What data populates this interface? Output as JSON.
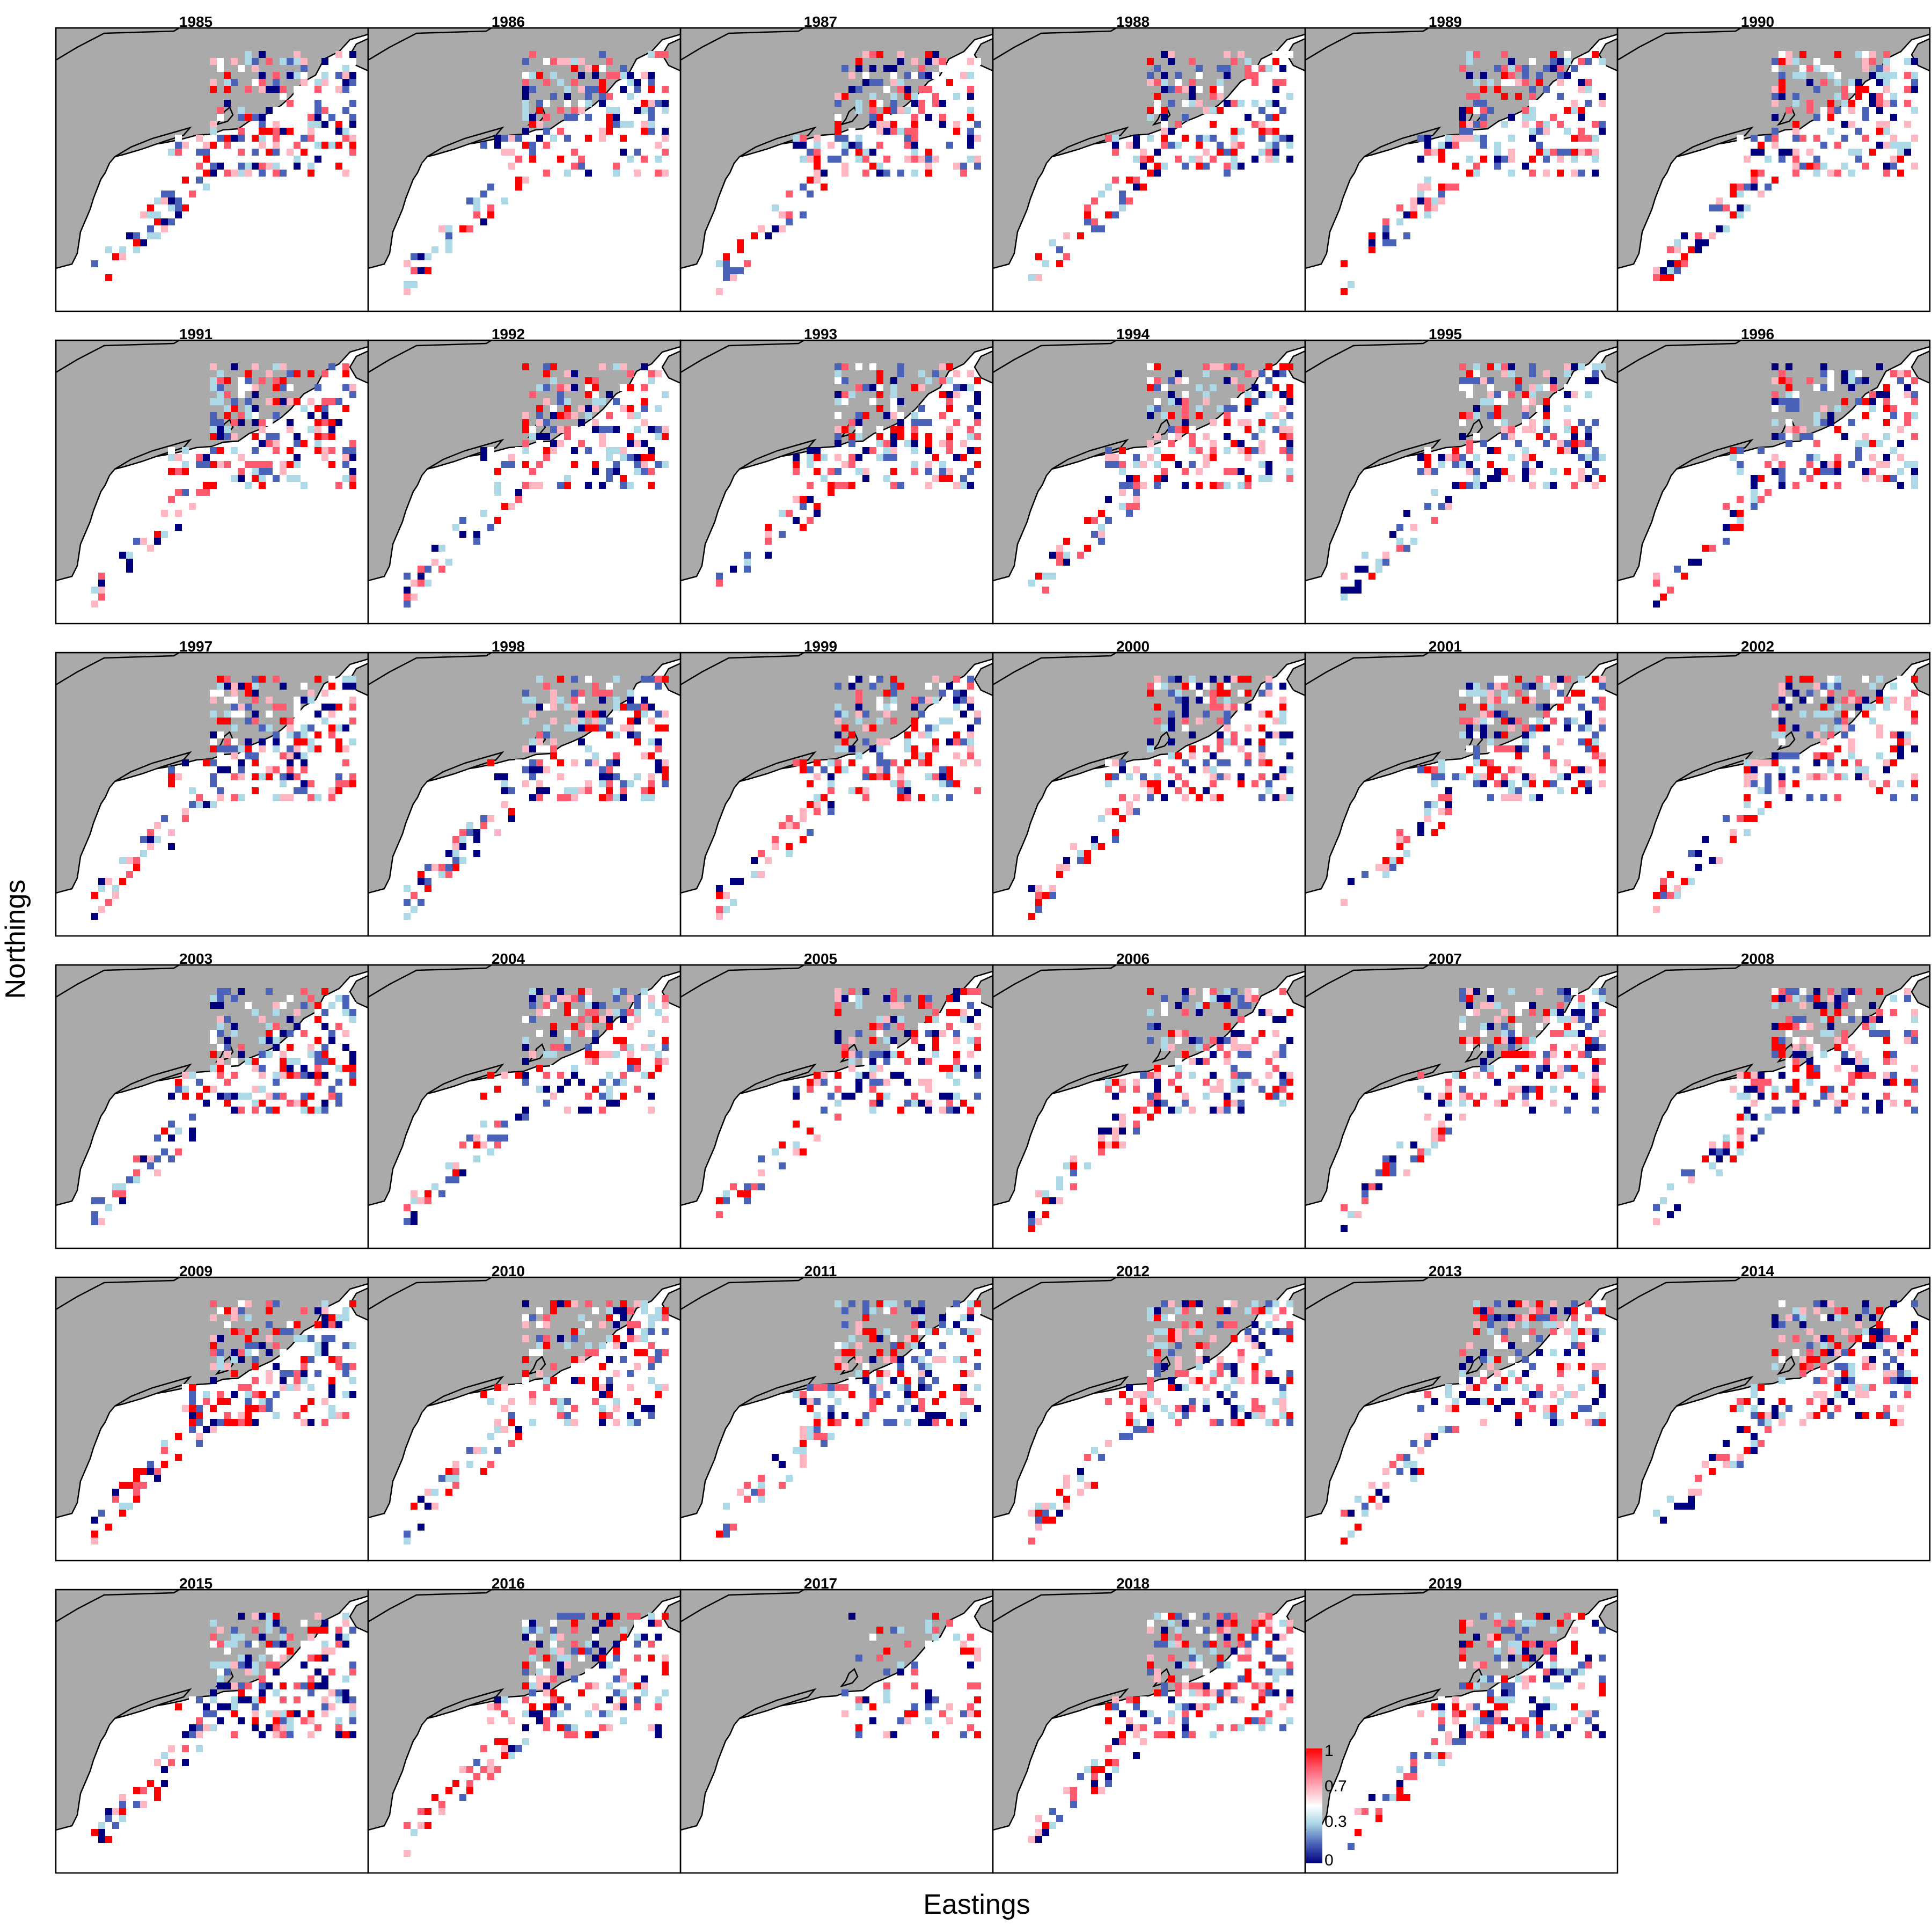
{
  "chart_data": {
    "type": "heatmap",
    "xlabel": "Eastings",
    "ylabel": "Northings",
    "panels": [
      "1985",
      "1986",
      "1987",
      "1988",
      "1989",
      "1990",
      "1991",
      "1992",
      "1993",
      "1994",
      "1995",
      "1996",
      "1997",
      "1998",
      "1999",
      "2000",
      "2001",
      "2002",
      "2003",
      "2004",
      "2005",
      "2006",
      "2007",
      "2008",
      "2009",
      "2010",
      "2011",
      "2012",
      "2013",
      "2014",
      "2015",
      "2016",
      "2017",
      "2018",
      "2019"
    ],
    "layout": {
      "columns": 6,
      "rows": 6
    },
    "colorbar": {
      "ticks": [
        "1",
        "0.7",
        "0.3",
        "0"
      ],
      "range": [
        0,
        1
      ],
      "colors": [
        "#00007f",
        "#4a63b8",
        "#add8e6",
        "#ffffff",
        "#ffb6c1",
        "#ff5a6e",
        "#ff0000"
      ]
    },
    "land_color": "#aaaaaa",
    "grid": false
  }
}
